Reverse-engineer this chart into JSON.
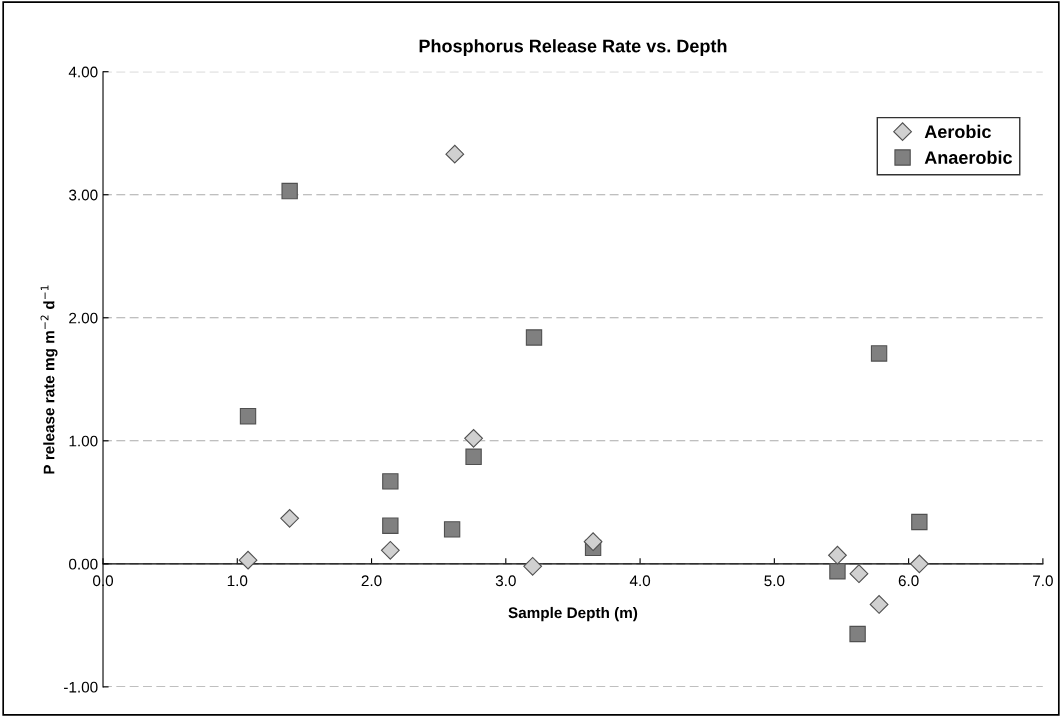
{
  "chart_data": {
    "type": "scatter",
    "title": "Phosphorus Release Rate vs. Depth",
    "xlabel": "Sample Depth (m)",
    "ylabel": "P release rate mg m$^{−2}$ d$^{−1}$",
    "xlim": [
      0,
      7
    ],
    "xticks": [
      {
        "value": 0,
        "label": "0.0"
      },
      {
        "value": 1,
        "label": "1.0"
      },
      {
        "value": 2,
        "label": "2.0"
      },
      {
        "value": 3,
        "label": "3.0"
      },
      {
        "value": 4,
        "label": "4.0"
      },
      {
        "value": 5,
        "label": "5.0"
      },
      {
        "value": 6,
        "label": "6.0"
      },
      {
        "value": 7,
        "label": "7.0"
      }
    ],
    "ylim": [
      -1,
      4
    ],
    "yticks": [
      {
        "value": -1,
        "label": "-1.00"
      },
      {
        "value": 0,
        "label": "0.00"
      },
      {
        "value": 1,
        "label": "1.00"
      },
      {
        "value": 2,
        "label": "2.00"
      },
      {
        "value": 3,
        "label": "3.00"
      },
      {
        "value": 4,
        "label": "4.00"
      }
    ],
    "grid": "y",
    "legend": "top right",
    "series": [
      {
        "name": "Aerobic",
        "color": "#d0d0d0",
        "marker": "diamond",
        "x": [
          1.08,
          1.39,
          2.14,
          2.62,
          2.76,
          3.2,
          3.65,
          5.47,
          5.63,
          5.78,
          6.08
        ],
        "values": [
          0.03,
          0.37,
          0.11,
          3.33,
          1.02,
          -0.02,
          0.18,
          0.07,
          -0.08,
          -0.33,
          0.0
        ]
      },
      {
        "name": "Anaerobic",
        "color": "#808080",
        "marker": "square",
        "x": [
          1.08,
          1.39,
          2.14,
          2.14,
          2.6,
          2.76,
          3.21,
          3.65,
          5.47,
          5.62,
          5.78,
          6.08
        ],
        "values": [
          1.2,
          3.03,
          0.67,
          0.31,
          0.28,
          0.87,
          1.84,
          0.13,
          -0.06,
          -0.57,
          1.71,
          0.34
        ]
      }
    ]
  }
}
